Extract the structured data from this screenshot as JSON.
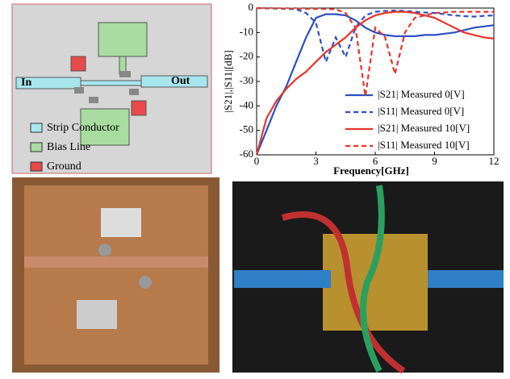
{
  "layout_diagram": {
    "port_in": "In",
    "port_out": "Out",
    "legend": [
      "Strip Conductor",
      "Bias Line",
      "Ground"
    ]
  },
  "chart_data": {
    "type": "line",
    "xlabel": "Frequency[GHz]",
    "ylabel": "|S21|,|S11|[dB]",
    "x": [
      0,
      0.5,
      1,
      1.5,
      2,
      2.5,
      3,
      3.5,
      4,
      4.5,
      5,
      5.5,
      6,
      6.5,
      7,
      7.5,
      8,
      8.5,
      9,
      9.5,
      10,
      10.5,
      11,
      11.5,
      12
    ],
    "xlim": [
      0,
      12
    ],
    "xticks": [
      0,
      3,
      6,
      9,
      12
    ],
    "ylim": [
      -60,
      0
    ],
    "yticks": [
      0,
      -10,
      -20,
      -30,
      -40,
      -50,
      -60
    ],
    "series": [
      {
        "name": "|S21|  Measured  0[V]",
        "color": "#2b4fc4",
        "dash": false,
        "values": [
          -60,
          -50,
          -40,
          -32,
          -22,
          -12,
          -4,
          -2.5,
          -2.5,
          -3,
          -5,
          -8,
          -10,
          -11,
          -11.5,
          -11.5,
          -11.5,
          -11,
          -11,
          -10.5,
          -10,
          -9,
          -8,
          -7.5,
          -7
        ]
      },
      {
        "name": "|S11|  Measured  0[V]",
        "color": "#2b4fc4",
        "dash": true,
        "values": [
          0,
          -0.1,
          -0.2,
          -0.3,
          -0.5,
          -2,
          -6,
          -22,
          -12,
          -20,
          -8,
          -3,
          -1.5,
          -1.2,
          -1,
          -1.2,
          -1.5,
          -1.8,
          -2,
          -2.5,
          -3,
          -3.3,
          -3.5,
          -3.2,
          -3
        ]
      },
      {
        "name": "|S21|  Measured  10[V]",
        "color": "#e8332a",
        "dash": false,
        "values": [
          -60,
          -45,
          -38,
          -33,
          -29,
          -26,
          -22,
          -18,
          -15,
          -12,
          -8,
          -5,
          -3,
          -2,
          -1.5,
          -1.5,
          -2,
          -3,
          -4,
          -6,
          -8,
          -10,
          -11,
          -12,
          -12.5
        ]
      },
      {
        "name": "|S11|  Measured  10[V]",
        "color": "#e8332a",
        "dash": true,
        "values": [
          0,
          -0.1,
          -0.1,
          -0.2,
          -0.2,
          -0.3,
          -0.3,
          -0.4,
          -0.5,
          -2,
          -8,
          -36,
          -8,
          -12,
          -27,
          -10,
          -4,
          -3,
          -2,
          -1.8,
          -1.5,
          -1.5,
          -1.5,
          -1.5,
          -1.5
        ]
      }
    ]
  }
}
